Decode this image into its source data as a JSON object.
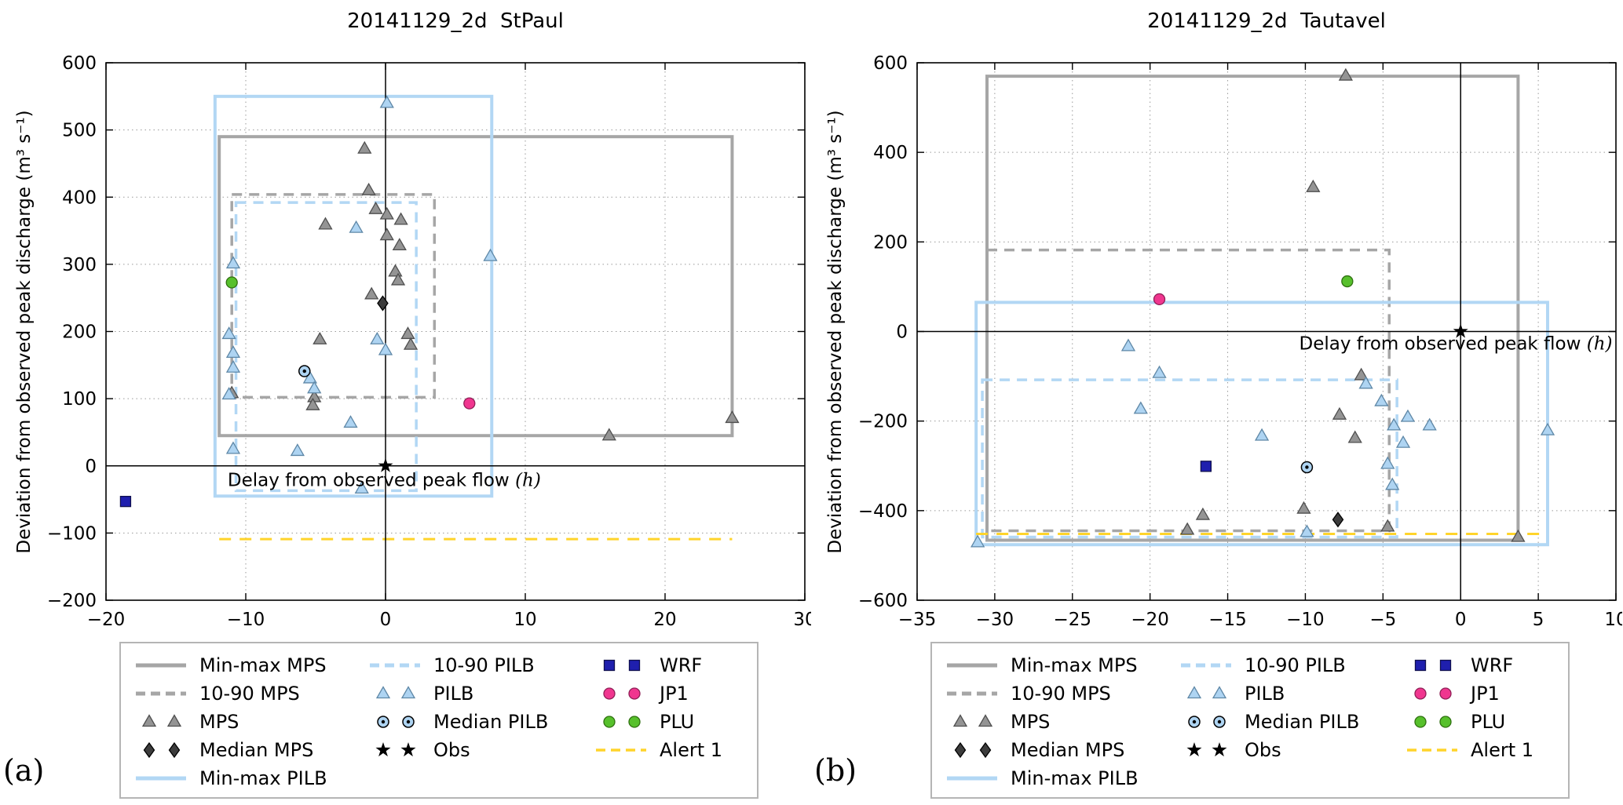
{
  "panels": [
    {
      "corner_label": "(a)"
    },
    {
      "corner_label": "(b)"
    }
  ],
  "chart_data": [
    {
      "type": "scatter",
      "title": "20141129_2d  StPaul",
      "xlabel": "Delay from observed peak flow (h)",
      "ylabel": "Deviation from observed peak discharge (m³ s⁻¹)",
      "xlim": [
        -20,
        30
      ],
      "ylim": [
        -200,
        600
      ],
      "xticks": [
        -20,
        -10,
        0,
        10,
        20,
        30
      ],
      "yticks": [
        -200,
        -100,
        0,
        100,
        200,
        300,
        400,
        500,
        600
      ],
      "grid": true,
      "legend_position": "below",
      "xlabel_pos": [
        -11.3,
        -30
      ],
      "boxes": [
        {
          "name": "Min-max MPS",
          "style": "solid",
          "color": "#a6a6a6",
          "x0": -11.9,
          "x1": 24.8,
          "y0": 45,
          "y1": 490
        },
        {
          "name": "10-90 MPS",
          "style": "dashed",
          "color": "#a6a6a6",
          "x0": -11.0,
          "x1": 3.5,
          "y0": 102,
          "y1": 404
        },
        {
          "name": "Min-max PILB",
          "style": "solid",
          "color": "#b2d7f4",
          "x0": -12.2,
          "x1": 7.6,
          "y0": -45,
          "y1": 550
        },
        {
          "name": "10-90 PILB",
          "style": "dashed",
          "color": "#b2d7f4",
          "x0": -10.7,
          "x1": 2.2,
          "y0": -37,
          "y1": 392
        }
      ],
      "lines": [
        {
          "name": "Alert 1",
          "style": "dashed",
          "color": "#ffd42a",
          "y": -109,
          "x0": -11.9,
          "x1": 24.8
        }
      ],
      "series": [
        {
          "name": "MPS",
          "marker": "triangle",
          "color": "#949494",
          "edge": "#4f4f4f",
          "points": [
            [
              -1.5,
              472
            ],
            [
              -1.2,
              410
            ],
            [
              -0.7,
              382
            ],
            [
              0.1,
              374
            ],
            [
              1.1,
              366
            ],
            [
              -4.3,
              359
            ],
            [
              0.1,
              343
            ],
            [
              1.0,
              328
            ],
            [
              0.7,
              289
            ],
            [
              0.9,
              276
            ],
            [
              -1.0,
              255
            ],
            [
              -4.7,
              188
            ],
            [
              1.6,
              196
            ],
            [
              1.8,
              180
            ],
            [
              -5.1,
              102
            ],
            [
              -5.2,
              90
            ],
            [
              -11,
              108
            ],
            [
              16,
              45
            ],
            [
              24.8,
              71
            ]
          ]
        },
        {
          "name": "PILB",
          "marker": "triangle",
          "color": "#aed4f2",
          "edge": "#5e87a6",
          "points": [
            [
              0.1,
              540
            ],
            [
              -2.1,
              354
            ],
            [
              -10.9,
              301
            ],
            [
              7.5,
              312
            ],
            [
              -11.2,
              196
            ],
            [
              -10.9,
              168
            ],
            [
              -10.9,
              146
            ],
            [
              -11.2,
              106
            ],
            [
              -5.4,
              130
            ],
            [
              -5.1,
              115
            ],
            [
              -0.6,
              188
            ],
            [
              0,
              172
            ],
            [
              -2.5,
              64
            ],
            [
              -10.9,
              25
            ],
            [
              -6.3,
              22
            ],
            [
              -1.7,
              -34
            ]
          ]
        },
        {
          "name": "Median MPS",
          "marker": "diamond",
          "color": "#3c3c3c",
          "edge": "#000000",
          "points": [
            [
              -0.2,
              242
            ]
          ]
        },
        {
          "name": "Median PILB",
          "marker": "circle-dot",
          "color": "#aed4f2",
          "edge": "#000000",
          "points": [
            [
              -5.8,
              141
            ]
          ]
        },
        {
          "name": "Obs",
          "marker": "star",
          "color": "#000000",
          "edge": "none",
          "points": [
            [
              0,
              0
            ]
          ]
        },
        {
          "name": "WRF",
          "marker": "square",
          "color": "#1f1fae",
          "edge": "#10104f",
          "points": [
            [
              -18.6,
              -53
            ]
          ]
        },
        {
          "name": "JP1",
          "marker": "circle",
          "color": "#f0368f",
          "edge": "#8f1f56",
          "points": [
            [
              6.0,
              93
            ]
          ]
        },
        {
          "name": "PLU",
          "marker": "circle",
          "color": "#57c02c",
          "edge": "#2f7010",
          "points": [
            [
              -11,
              273
            ]
          ]
        }
      ]
    },
    {
      "type": "scatter",
      "title": "20141129_2d  Tautavel",
      "xlabel": "Delay from observed peak flow (h)",
      "ylabel": "Deviation from observed peak discharge (m³ s⁻¹)",
      "xlim": [
        -35,
        10
      ],
      "ylim": [
        -600,
        600
      ],
      "xticks": [
        -35,
        -30,
        -25,
        -20,
        -15,
        -10,
        -5,
        0,
        5,
        10
      ],
      "yticks": [
        -600,
        -400,
        -200,
        0,
        200,
        400,
        600
      ],
      "grid": true,
      "legend_position": "below",
      "xlabel_pos": [
        -10.4,
        -40
      ],
      "boxes": [
        {
          "name": "Min-max MPS",
          "style": "solid",
          "color": "#a6a6a6",
          "x0": -30.5,
          "x1": 3.7,
          "y0": -466,
          "y1": 570
        },
        {
          "name": "10-90 MPS",
          "style": "dashed",
          "color": "#a6a6a6",
          "x0": -30.5,
          "x1": -4.6,
          "y0": -445,
          "y1": 182
        },
        {
          "name": "Min-max PILB",
          "style": "solid",
          "color": "#b2d7f4",
          "x0": -31.2,
          "x1": 5.6,
          "y0": -476,
          "y1": 65
        },
        {
          "name": "10-90 PILB",
          "style": "dashed",
          "color": "#b2d7f4",
          "x0": -30.8,
          "x1": -4.1,
          "y0": -459,
          "y1": -108
        }
      ],
      "lines": [
        {
          "name": "Alert 1",
          "style": "dashed",
          "color": "#ffd42a",
          "y": -452,
          "x0": -31.2,
          "x1": 5.6
        }
      ],
      "series": [
        {
          "name": "MPS",
          "marker": "triangle",
          "color": "#949494",
          "edge": "#4f4f4f",
          "points": [
            [
              -7.4,
              571
            ],
            [
              -9.5,
              322
            ],
            [
              -6.4,
              -98
            ],
            [
              -7.8,
              -186
            ],
            [
              -6.8,
              -238
            ],
            [
              -16.6,
              -410
            ],
            [
              -17.6,
              -443
            ],
            [
              -10.1,
              -396
            ],
            [
              -4.7,
              -436
            ],
            [
              3.7,
              -459
            ]
          ]
        },
        {
          "name": "PILB",
          "marker": "triangle",
          "color": "#aed4f2",
          "edge": "#5e87a6",
          "points": [
            [
              -21.4,
              -33
            ],
            [
              -19.4,
              -93
            ],
            [
              -20.6,
              -173
            ],
            [
              -12.8,
              -233
            ],
            [
              -31.1,
              -471
            ],
            [
              -6.1,
              -117
            ],
            [
              -5.1,
              -156
            ],
            [
              -4.3,
              -210
            ],
            [
              -3.4,
              -191
            ],
            [
              -3.7,
              -249
            ],
            [
              -2.0,
              -210
            ],
            [
              -4.7,
              -296
            ],
            [
              -4.4,
              -343
            ],
            [
              5.6,
              -221
            ],
            [
              -9.9,
              -448
            ]
          ]
        },
        {
          "name": "Median MPS",
          "marker": "diamond",
          "color": "#3c3c3c",
          "edge": "#000000",
          "points": [
            [
              -7.9,
              -420
            ]
          ]
        },
        {
          "name": "Median PILB",
          "marker": "circle-dot",
          "color": "#aed4f2",
          "edge": "#000000",
          "points": [
            [
              -9.9,
              -303
            ]
          ]
        },
        {
          "name": "Obs",
          "marker": "star",
          "color": "#000000",
          "edge": "none",
          "points": [
            [
              0,
              0
            ]
          ]
        },
        {
          "name": "WRF",
          "marker": "square",
          "color": "#1f1fae",
          "edge": "#10104f",
          "points": [
            [
              -16.4,
              -301
            ]
          ]
        },
        {
          "name": "JP1",
          "marker": "circle",
          "color": "#f0368f",
          "edge": "#8f1f56",
          "points": [
            [
              -19.4,
              72
            ]
          ]
        },
        {
          "name": "PLU",
          "marker": "circle",
          "color": "#57c02c",
          "edge": "#2f7010",
          "points": [
            [
              -7.3,
              112
            ]
          ]
        }
      ]
    }
  ],
  "legend": {
    "entries": [
      {
        "label": "Min-max MPS",
        "swatch": "line-solid",
        "color": "#a6a6a6",
        "lw": 5
      },
      {
        "label": "10-90 MPS",
        "swatch": "line-dashed",
        "color": "#a6a6a6",
        "lw": 5
      },
      {
        "label": "MPS",
        "swatch": "triangle-pair",
        "color": "#949494",
        "edge": "#4f4f4f"
      },
      {
        "label": "Median MPS",
        "swatch": "diamond-pair",
        "color": "#3c3c3c",
        "edge": "#000000"
      },
      {
        "label": "Min-max PILB",
        "swatch": "line-solid",
        "color": "#b2d7f4",
        "lw": 5
      },
      {
        "label": "10-90 PILB",
        "swatch": "line-dashed",
        "color": "#b2d7f4",
        "lw": 5
      },
      {
        "label": "PILB",
        "swatch": "triangle-pair",
        "color": "#aed4f2",
        "edge": "#5e87a6"
      },
      {
        "label": "Median PILB",
        "swatch": "circledot-pair",
        "color": "#aed4f2",
        "edge": "#000000"
      },
      {
        "label": "Obs",
        "swatch": "star-pair",
        "color": "#000000"
      },
      {
        "label": "WRF",
        "swatch": "square-pair",
        "color": "#1f1fae",
        "edge": "#10104f"
      },
      {
        "label": "JP1",
        "swatch": "circle-pair",
        "color": "#f0368f",
        "edge": "#8f1f56"
      },
      {
        "label": "PLU",
        "swatch": "circle-pair",
        "color": "#57c02c",
        "edge": "#2f7010"
      },
      {
        "label": "Alert 1",
        "swatch": "line-dashed",
        "color": "#ffd42a",
        "lw": 3.5
      }
    ],
    "columns": [
      [
        0,
        1,
        2,
        3,
        4
      ],
      [
        5,
        6,
        7,
        8
      ],
      [
        9,
        10,
        11,
        12
      ]
    ]
  },
  "colors": {
    "mps_gray": "#a6a6a6",
    "pilb_blue": "#b2d7f4",
    "wrf_navy": "#1f1fae",
    "jp1_pink": "#f0368f",
    "plu_green": "#57c02c",
    "alert_yellow": "#ffd42a",
    "grid": "#999999"
  }
}
